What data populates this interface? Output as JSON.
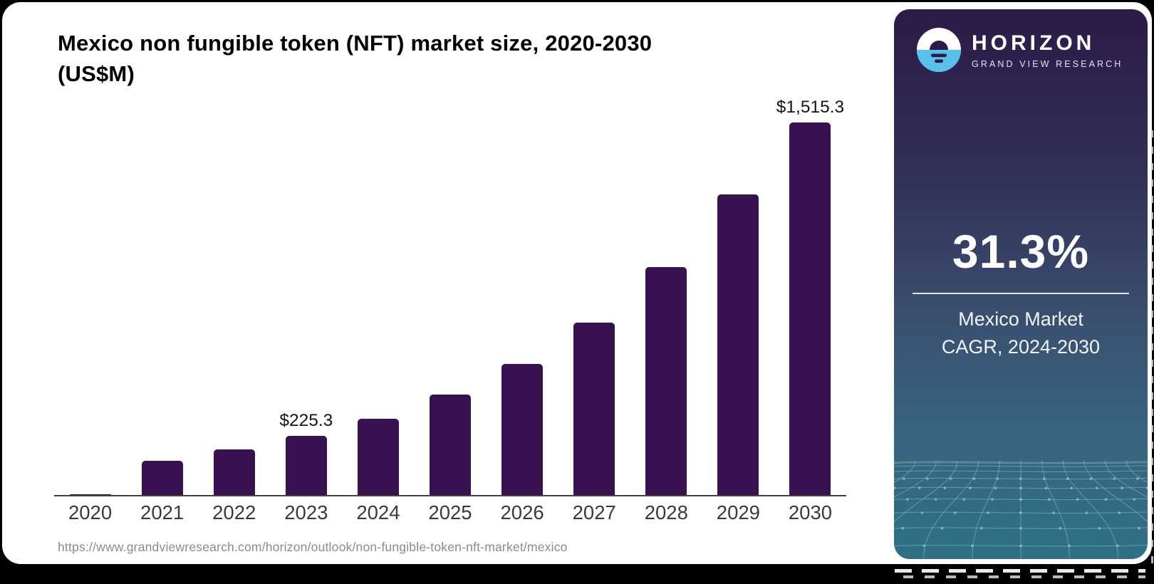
{
  "header": {
    "title_line1": "Mexico non fungible token (NFT) market size, 2020-2030",
    "title_line2": "(US$M)"
  },
  "chart_data": {
    "type": "bar",
    "title": "Mexico non fungible token (NFT) market size, 2020-2030 (US$M)",
    "unit": "US$M",
    "categories": [
      "2020",
      "2021",
      "2022",
      "2023",
      "2024",
      "2025",
      "2026",
      "2027",
      "2028",
      "2029",
      "2030"
    ],
    "values": [
      3,
      131,
      175,
      225.3,
      292,
      385,
      502,
      661,
      871,
      1149,
      1515.3
    ],
    "data_labels": {
      "2023": "$225.3",
      "2030": "$1,515.3"
    },
    "bar_color": "#371150",
    "xlabel": "",
    "ylabel": "",
    "ylim": [
      0,
      1600
    ],
    "grid": false,
    "legend": false
  },
  "footer": {
    "source_url": "https://www.grandviewresearch.com/horizon/outlook/non-fungible-token-nft-market/mexico"
  },
  "sidebar": {
    "brand": "HORIZON",
    "brand_sub": "GRAND VIEW RESEARCH",
    "stat_value": "31.3%",
    "stat_label_line1": "Mexico Market",
    "stat_label_line2": "CAGR, 2024-2030",
    "colors": {
      "accent_blue": "#57C1E9",
      "panel_top": "#2D1A48",
      "panel_bottom": "#2E7186",
      "bar_purple": "#371150"
    }
  }
}
